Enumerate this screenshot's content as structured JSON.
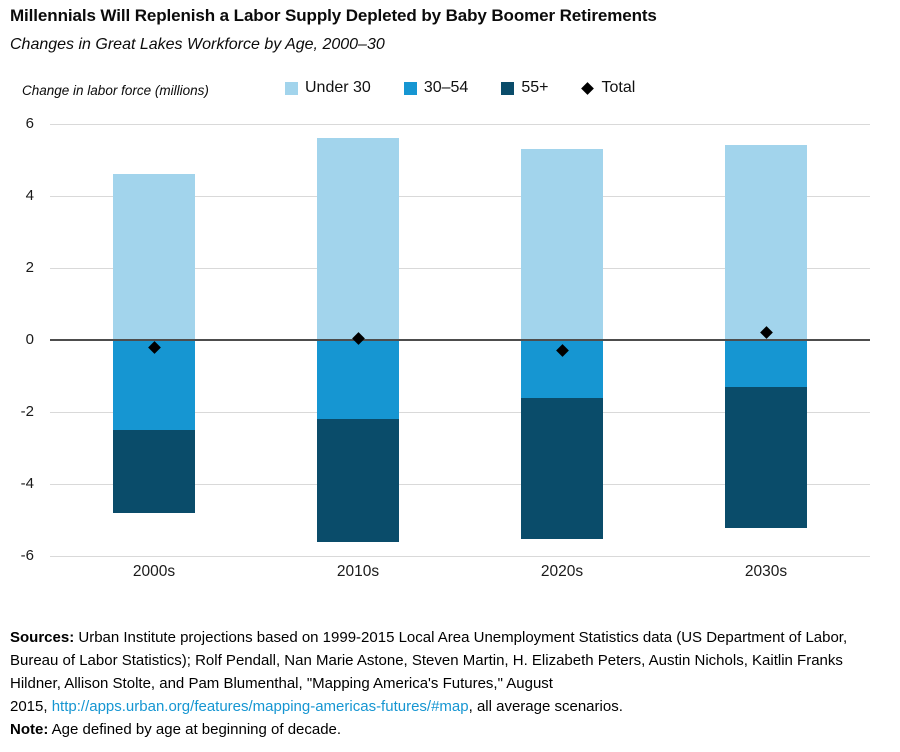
{
  "page": {
    "title": "Millennials Will Replenish a Labor Supply Depleted by Baby Boomer Retirements",
    "subtitle": "Changes in Great Lakes Workforce by Age, 2000–30"
  },
  "chart_data": {
    "type": "bar",
    "stacked": true,
    "axis_label": "Change in labor force (millions)",
    "categories": [
      "2000s",
      "2010s",
      "2020s",
      "2030s"
    ],
    "series": [
      {
        "name": "Under 30",
        "color": "#a2d4ec",
        "values": [
          4.6,
          5.6,
          5.3,
          5.4
        ]
      },
      {
        "name": "30–54",
        "color": "#1696d2",
        "values": [
          -2.5,
          -2.2,
          -1.6,
          -1.3
        ]
      },
      {
        "name": "55+",
        "color": "#0a4c6a",
        "values": [
          -2.3,
          -3.4,
          -3.9,
          -3.9
        ]
      }
    ],
    "total_series": {
      "name": "Total",
      "marker": "diamond",
      "color": "#000000",
      "values": [
        -0.2,
        0.05,
        -0.3,
        0.2
      ]
    },
    "ylim": [
      -6,
      6
    ],
    "yticks": [
      6,
      4,
      2,
      0,
      -2,
      -4,
      -6
    ],
    "grid": true,
    "legend_position": "top",
    "colors": {
      "gridline": "#d9d9d9",
      "zero_line": "#4d4d4d",
      "tick_text": "#1a1a1a"
    }
  },
  "footer": {
    "sources_label": "Sources:",
    "sources_part1": " Urban Institute projections based on 1999-2015 Local Area Unemployment Statistics data (US Department of Labor, Bureau of Labor Statistics); Rolf Pendall, Nan Marie Astone, Steven Martin, H. Elizabeth Peters, Austin Nichols, Kaitlin Franks Hildner, Allison Stolte, and Pam Blumenthal, \"Mapping America's Futures,\" August",
    "sources_part2": "2015, ",
    "link_text": "http://apps.urban.org/features/mapping-americas-futures/#map",
    "link_color": "#1696d2",
    "sources_part3": ", all average scenarios.",
    "note_label": "Note:",
    "note_text": " Age defined by age at beginning of decade."
  }
}
